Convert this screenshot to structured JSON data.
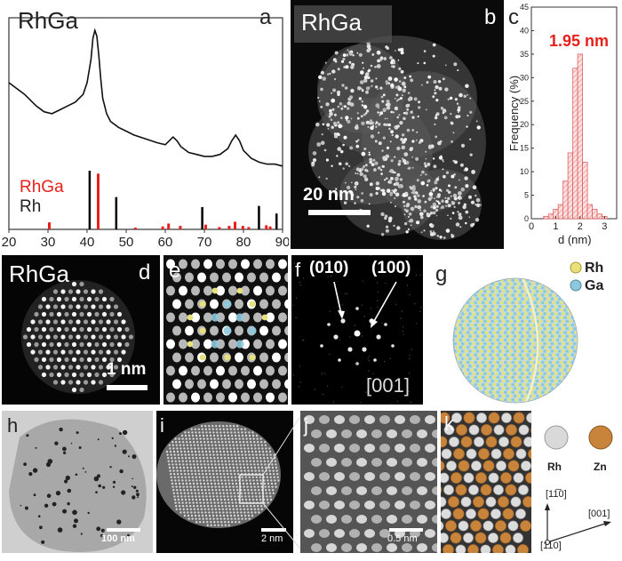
{
  "panel_a": {
    "letter": "a",
    "title": "RhGa",
    "legend": [
      {
        "label": "RhGa",
        "color": "#e8201c"
      },
      {
        "label": "Rh",
        "color": "#000000"
      }
    ],
    "xticks": [
      "20",
      "30",
      "40",
      "50",
      "60",
      "70",
      "80",
      "90"
    ]
  },
  "panel_b": {
    "letter": "b",
    "title": "RhGa",
    "scale": "20 nm"
  },
  "panel_c": {
    "letter": "c",
    "annotation": "1.95 nm",
    "ylabel": "Frequency (%)",
    "xlabel": "d (nm)",
    "yticks": [
      "0",
      "5",
      "10",
      "15",
      "20",
      "25",
      "30",
      "35",
      "40",
      "45"
    ],
    "xticks": [
      "0",
      "1",
      "2",
      "3"
    ]
  },
  "panel_d": {
    "letter": "d",
    "title": "RhGa",
    "scale": "1 nm"
  },
  "panel_e": {
    "letter": "e"
  },
  "panel_f": {
    "letter": "f",
    "spot1": "(010)",
    "spot2": "(100)",
    "zone": "[001]"
  },
  "panel_g": {
    "letter": "g",
    "legend1": "Rh",
    "legend2": "Ga"
  },
  "panel_h": {
    "letter": "h",
    "scale": "100 nm"
  },
  "panel_i": {
    "letter": "i",
    "scale": "2 nm"
  },
  "panel_j": {
    "letter": "j",
    "scale": "0.5 nm"
  },
  "panel_k": {
    "letter": "k",
    "legend1": "Rh",
    "legend2": "Zn",
    "dir1": "[11̅0]",
    "dir2": "[001]",
    "dir3": "[110]"
  },
  "colors": {
    "rhga_ref": "#e8201c",
    "rh_ref": "#000000",
    "hist_bar": "#f08080",
    "annot": "#e8201c",
    "rh_atom": "#d9d9d9",
    "zn_atom": "#c8843a",
    "ga_atom": "#8fc8dc",
    "rh_yellow": "#e8e07a"
  },
  "chart_data": [
    {
      "type": "line",
      "xlim": [
        20,
        90
      ],
      "xlabel": "",
      "ylabel": "",
      "series": [
        {
          "name": "RhGa",
          "x": [
            20,
            24,
            27,
            29,
            31,
            33,
            35,
            37,
            39,
            40,
            41,
            41.5,
            42,
            42.5,
            43,
            43.5,
            44,
            45,
            46,
            48,
            50,
            52,
            55,
            58,
            60,
            61,
            62,
            63,
            64,
            66,
            68,
            70,
            72,
            74,
            76,
            77,
            78,
            79,
            80,
            82,
            84,
            86,
            88,
            90
          ],
          "y": [
            0.72,
            0.66,
            0.6,
            0.57,
            0.56,
            0.58,
            0.6,
            0.62,
            0.66,
            0.72,
            0.84,
            0.95,
            0.99,
            0.96,
            0.86,
            0.74,
            0.64,
            0.56,
            0.52,
            0.49,
            0.47,
            0.45,
            0.43,
            0.41,
            0.4,
            0.42,
            0.44,
            0.42,
            0.39,
            0.36,
            0.35,
            0.34,
            0.34,
            0.35,
            0.38,
            0.42,
            0.45,
            0.42,
            0.37,
            0.33,
            0.31,
            0.3,
            0.3,
            0.29
          ]
        }
      ],
      "reference_sticks": [
        {
          "name": "RhGa",
          "positions": [
            30,
            42.5,
            52,
            59,
            60.5,
            63.5,
            70,
            73.5,
            76,
            77.5,
            79.5,
            81,
            85.5,
            86.5
          ],
          "heights": [
            0.12,
            0.95,
            0.03,
            0.05,
            0.1,
            0.06,
            0.08,
            0.04,
            0.06,
            0.13,
            0.06,
            0.04,
            0.07,
            0.05
          ]
        },
        {
          "name": "Rh",
          "positions": [
            41,
            47.8,
            69.8,
            84.3,
            88.8
          ],
          "heights": [
            1.0,
            0.55,
            0.38,
            0.4,
            0.27
          ]
        }
      ]
    },
    {
      "type": "bar",
      "xlabel": "d (nm)",
      "ylabel": "Frequency (%)",
      "xlim": [
        0,
        3.5
      ],
      "ylim": [
        0,
        45
      ],
      "x": [
        0.6,
        0.8,
        1.0,
        1.2,
        1.4,
        1.6,
        1.8,
        2.0,
        2.2,
        2.4,
        2.6,
        2.8,
        3.0
      ],
      "values": [
        0.5,
        1,
        2,
        3,
        8,
        14,
        32,
        35,
        12,
        3,
        2,
        1,
        0.5
      ]
    }
  ]
}
